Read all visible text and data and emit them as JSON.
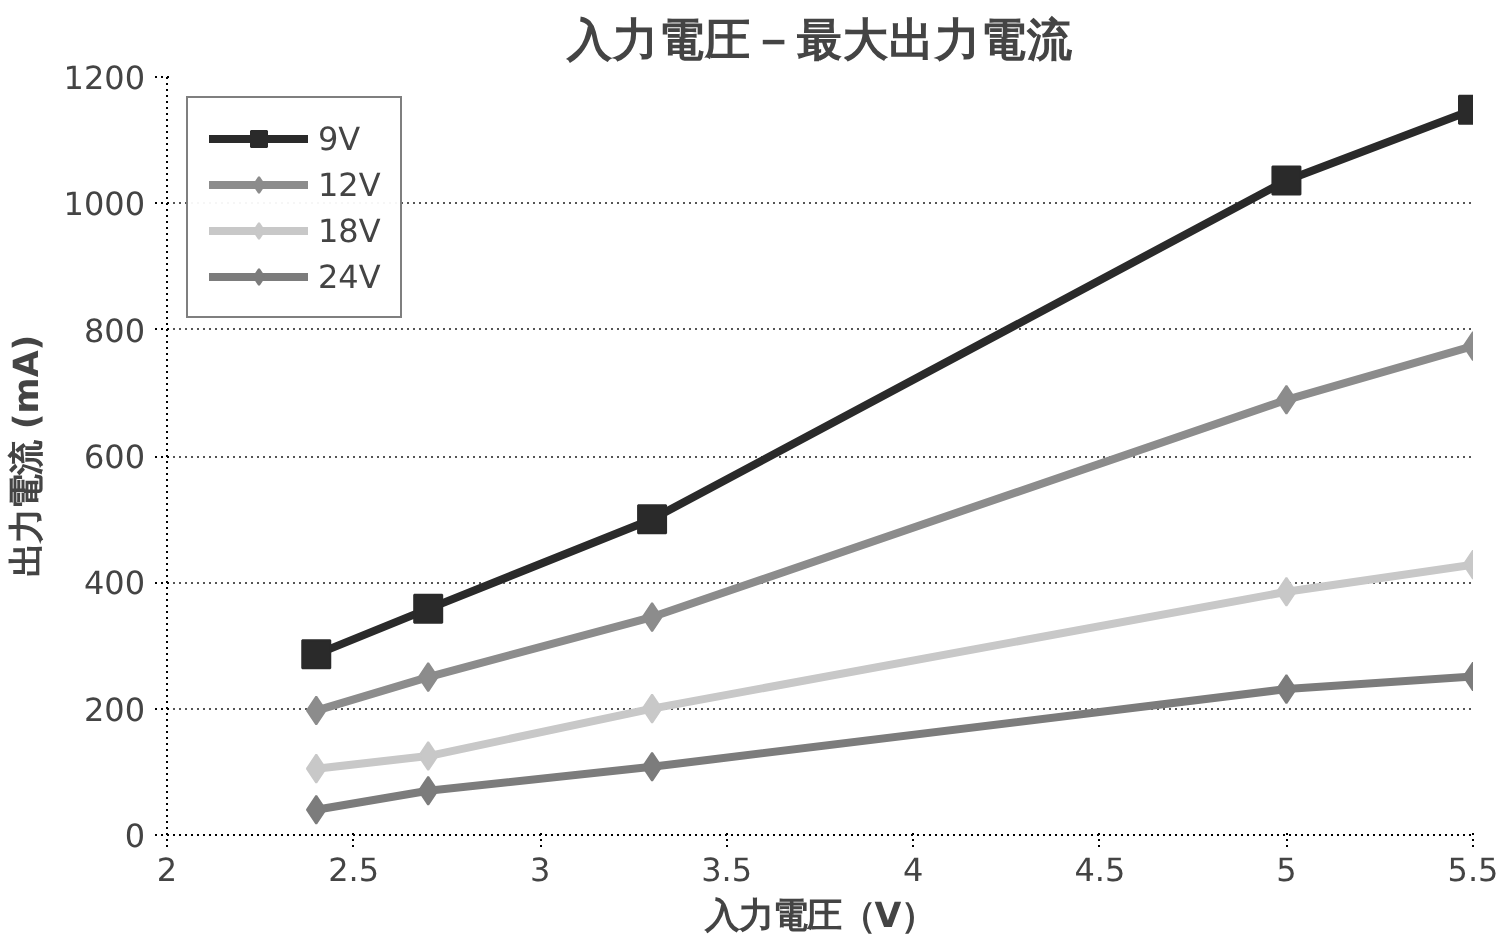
{
  "chart_data": {
    "type": "line",
    "title": "入力電圧－最大出力電流",
    "xlabel": "入力電圧（V）",
    "ylabel": "出力電流 (mA)",
    "x": [
      2.4,
      2.7,
      3.3,
      5.0,
      5.5
    ],
    "series": [
      {
        "name": "9V",
        "color": "#2a2a2a",
        "marker": "square",
        "values": [
          286,
          358,
          500,
          1036,
          1148
        ]
      },
      {
        "name": "12V",
        "color": "#8c8c8c",
        "marker": "diamond",
        "values": [
          197,
          250,
          345,
          689,
          774
        ]
      },
      {
        "name": "18V",
        "color": "#c8c8c8",
        "marker": "diamond",
        "values": [
          105,
          125,
          200,
          385,
          428
        ]
      },
      {
        "name": "24V",
        "color": "#7c7c7c",
        "marker": "diamond",
        "values": [
          40,
          70,
          108,
          231,
          251
        ]
      }
    ],
    "xlim": [
      2,
      5.5
    ],
    "xticks": [
      2,
      2.5,
      3,
      3.5,
      4,
      4.5,
      5,
      5.5
    ],
    "ylim": [
      0,
      1200
    ],
    "yticks": [
      0,
      200,
      400,
      600,
      800,
      1000,
      1200
    ],
    "grid": "y",
    "legend": "top left",
    "line_style": "solid"
  }
}
